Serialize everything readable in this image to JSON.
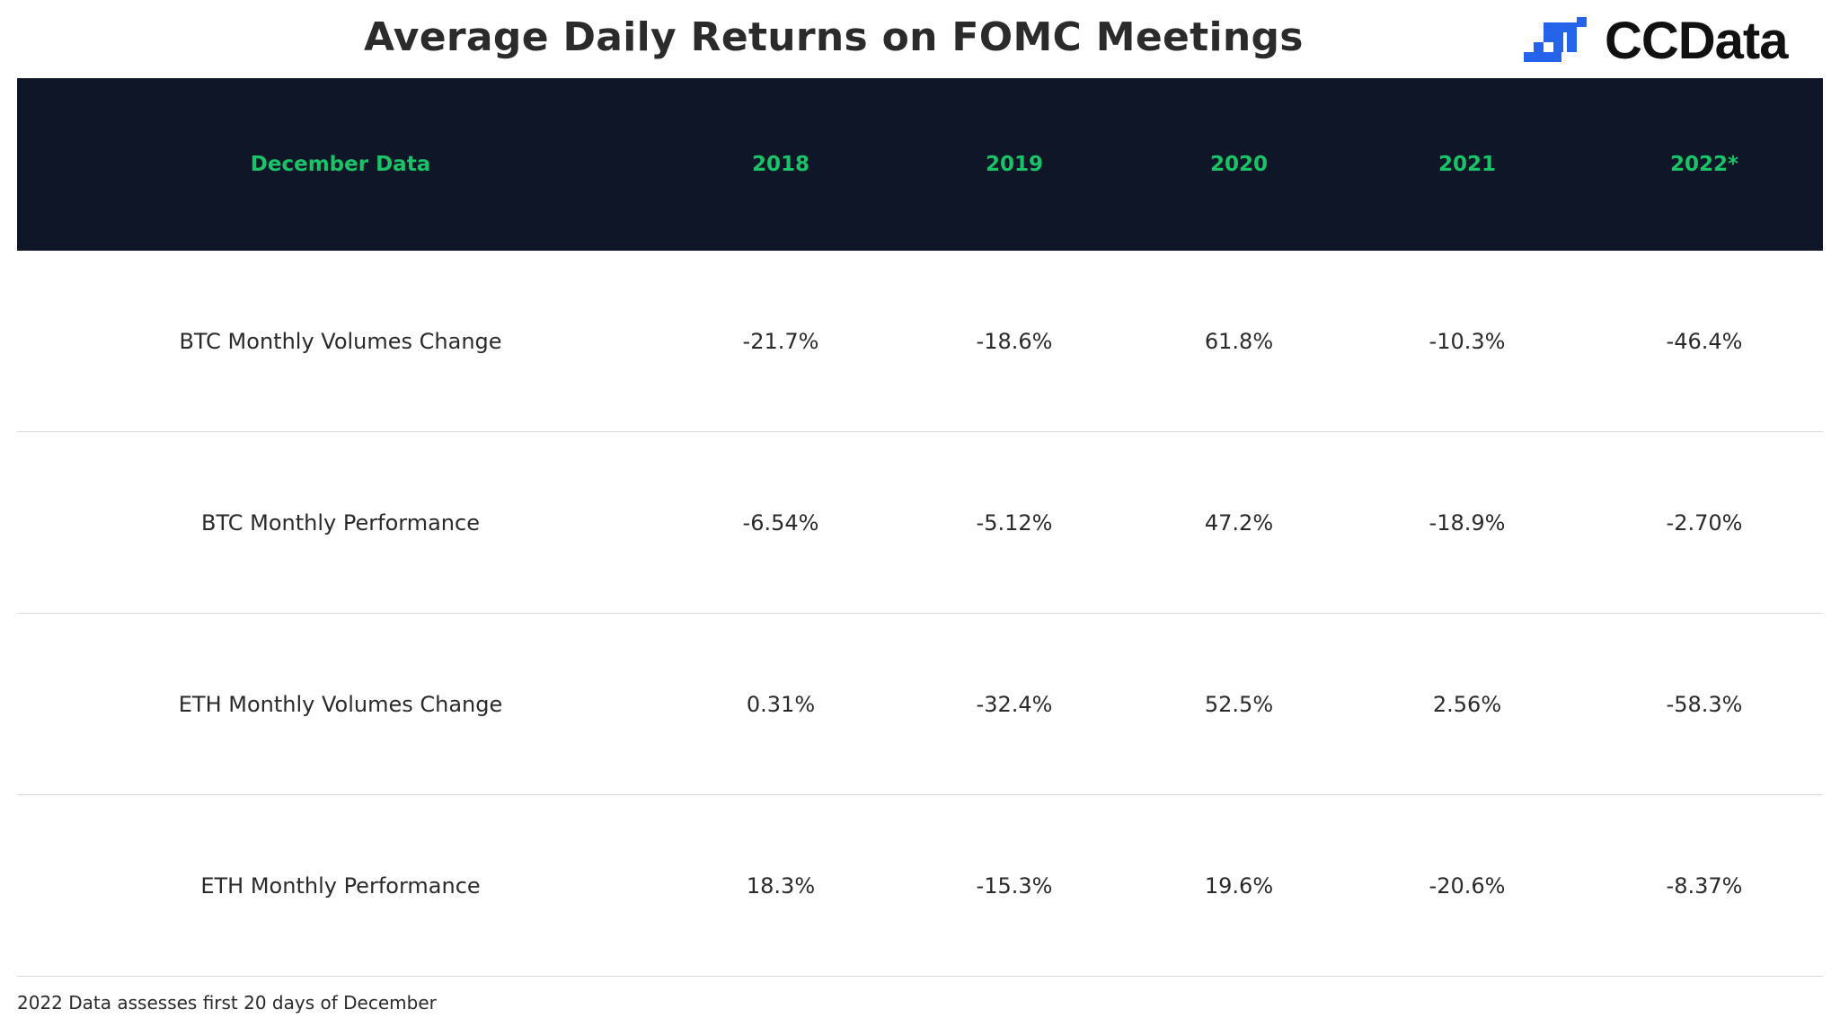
{
  "title": "Average Daily Returns on FOMC Meetings",
  "brand": {
    "name": "CCData",
    "logo_icon": "ccdata-logo-icon",
    "logo_color": "#2563eb"
  },
  "colors": {
    "header_background": "#0e1627",
    "header_text": "#19c468"
  },
  "chart_data": {
    "type": "table",
    "columns": [
      "December Data",
      "2018",
      "2019",
      "2020",
      "2021",
      "2022*"
    ],
    "rows": [
      {
        "label": "BTC Monthly Volumes Change",
        "values": [
          "-21.7%",
          "-18.6%",
          "61.8%",
          "-10.3%",
          "-46.4%"
        ]
      },
      {
        "label": "BTC Monthly Performance",
        "values": [
          "-6.54%",
          "-5.12%",
          "47.2%",
          "-18.9%",
          "-2.70%"
        ]
      },
      {
        "label": "ETH Monthly Volumes Change",
        "values": [
          "0.31%",
          "-32.4%",
          "52.5%",
          "2.56%",
          "-58.3%"
        ]
      },
      {
        "label": "ETH Monthly Performance",
        "values": [
          "18.3%",
          "-15.3%",
          "19.6%",
          "-20.6%",
          "-8.37%"
        ]
      }
    ]
  },
  "footnote": "2022 Data assesses first 20 days of December"
}
